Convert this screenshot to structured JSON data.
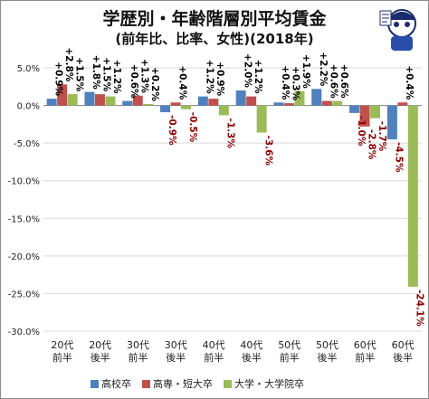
{
  "title": "学歴別・年齢階層別平均賃金",
  "subtitle": "(前年比、比率、女性)(2018年)",
  "colors": {
    "s1": "#4f81bd",
    "s2": "#c0504d",
    "s3": "#9bbb59",
    "pos_label": "#000000",
    "neg_label": "#8b0000"
  },
  "chart_data": {
    "type": "bar",
    "title": "学歴別・年齢階層別平均賃金",
    "subtitle": "(前年比、比率、女性)(2018年)",
    "xlabel": "",
    "ylabel": "",
    "ylim": [
      -30,
      5
    ],
    "yticks": [
      5,
      0,
      -5,
      -10,
      -15,
      -20,
      -25,
      -30
    ],
    "ytick_labels": [
      "5.0%",
      "0.0%",
      "-5.0%",
      "-10.0%",
      "-15.0%",
      "-20.0%",
      "-25.0%",
      "-30.0%"
    ],
    "categories": [
      [
        "20代",
        "前半"
      ],
      [
        "20代",
        "後半"
      ],
      [
        "30代",
        "前半"
      ],
      [
        "30代",
        "後半"
      ],
      [
        "40代",
        "前半"
      ],
      [
        "40代",
        "後半"
      ],
      [
        "50代",
        "前半"
      ],
      [
        "50代",
        "後半"
      ],
      [
        "60代",
        "前半"
      ],
      [
        "60代",
        "後半"
      ]
    ],
    "series": [
      {
        "name": "高校卒",
        "values": [
          0.9,
          1.8,
          0.6,
          -0.9,
          1.2,
          2.0,
          0.4,
          2.2,
          -1.0,
          -4.5
        ],
        "labels": [
          "+0.9%",
          "+1.8%",
          "+0.6%",
          "-0.9%",
          "+1.2%",
          "+2.0%",
          "+0.4%",
          "+2.2%",
          "-1.0%",
          "-4.5%"
        ]
      },
      {
        "name": "高専・短大卒",
        "values": [
          2.8,
          1.5,
          1.3,
          0.4,
          0.9,
          1.2,
          0.3,
          0.6,
          -2.8,
          0.4
        ],
        "labels": [
          "+2.8%",
          "+1.5%",
          "+1.3%",
          "+0.4%",
          "+0.9%",
          "+1.2%",
          "+0.3%",
          "+0.6%",
          "-2.8%",
          "+0.4%"
        ]
      },
      {
        "name": "大学・大学院卒",
        "values": [
          1.5,
          1.2,
          0.2,
          -0.5,
          -1.3,
          -3.6,
          1.9,
          0.6,
          -1.7,
          -24.1
        ],
        "labels": [
          "+1.5%",
          "+1.2%",
          "+0.2%",
          "-0.5%",
          "-1.3%",
          "-3.6%",
          "+1.9%",
          "+0.6%",
          "-1.7%",
          "-24.1%"
        ]
      }
    ],
    "grid": true,
    "legend": "bottom"
  },
  "legend_items": [
    "高校卒",
    "高専・短大卒",
    "大学・大学院卒"
  ]
}
